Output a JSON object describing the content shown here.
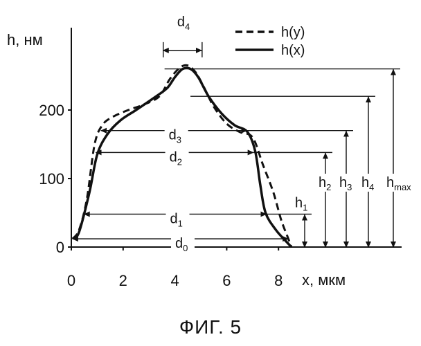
{
  "chart_data": {
    "type": "line",
    "title": "",
    "xlabel": "x, мкм",
    "ylabel": "h, нм",
    "xlim": [
      0,
      9
    ],
    "ylim": [
      0,
      290
    ],
    "x_ticks": [
      "0",
      "2",
      "4",
      "6",
      "8"
    ],
    "y_ticks": [
      "0",
      "100",
      "200"
    ],
    "grid": false,
    "legend_position": "top-right",
    "series": [
      {
        "name": "h(y)",
        "style": "dashed",
        "x": [
          0.05,
          0.3,
          0.6,
          0.9,
          1.2,
          1.6,
          2.2,
          2.8,
          3.4,
          3.8,
          4.2,
          4.5,
          4.8,
          5.1,
          5.5,
          6.0,
          6.5,
          7.0,
          7.4,
          7.8,
          8.1,
          8.35,
          8.5
        ],
        "y": [
          12,
          25,
          70,
          150,
          178,
          190,
          200,
          208,
          220,
          245,
          262,
          265,
          255,
          235,
          205,
          180,
          168,
          160,
          120,
          80,
          40,
          15,
          0
        ]
      },
      {
        "name": "h(x)",
        "style": "solid",
        "x": [
          0.05,
          0.3,
          0.7,
          1.0,
          1.4,
          1.9,
          2.5,
          3.2,
          3.7,
          4.0,
          4.3,
          4.6,
          4.9,
          5.3,
          5.8,
          6.3,
          6.8,
          7.1,
          7.3,
          7.5,
          7.9,
          8.3,
          8.5
        ],
        "y": [
          12,
          22,
          80,
          135,
          165,
          185,
          200,
          218,
          232,
          248,
          260,
          260,
          248,
          220,
          195,
          178,
          168,
          140,
          90,
          50,
          25,
          8,
          0
        ]
      }
    ],
    "annotations": {
      "widths": [
        {
          "label": "d",
          "sub": "4",
          "y": 287,
          "x1": 3.55,
          "x2": 5.05,
          "text_above": true
        },
        {
          "label": "d",
          "sub": "3",
          "y": 170,
          "x1": 1.15,
          "x2": 6.8
        },
        {
          "label": "d",
          "sub": "2",
          "y": 138,
          "x1": 0.95,
          "x2": 7.05
        },
        {
          "label": "d",
          "sub": "1",
          "y": 48,
          "x1": 0.5,
          "x2": 7.55
        },
        {
          "label": "d",
          "sub": "0",
          "y": 12,
          "x1": 0.05,
          "x2": 8.4
        }
      ],
      "heights": [
        {
          "label": "h",
          "sub": "1",
          "h": 48
        },
        {
          "label": "h",
          "sub": "2",
          "h": 138
        },
        {
          "label": "h",
          "sub": "3",
          "h": 170
        },
        {
          "label": "h",
          "sub": "4",
          "h": 220
        },
        {
          "label": "h",
          "sub": "max",
          "h": 260
        }
      ]
    }
  },
  "caption": "ФИГ. 5"
}
